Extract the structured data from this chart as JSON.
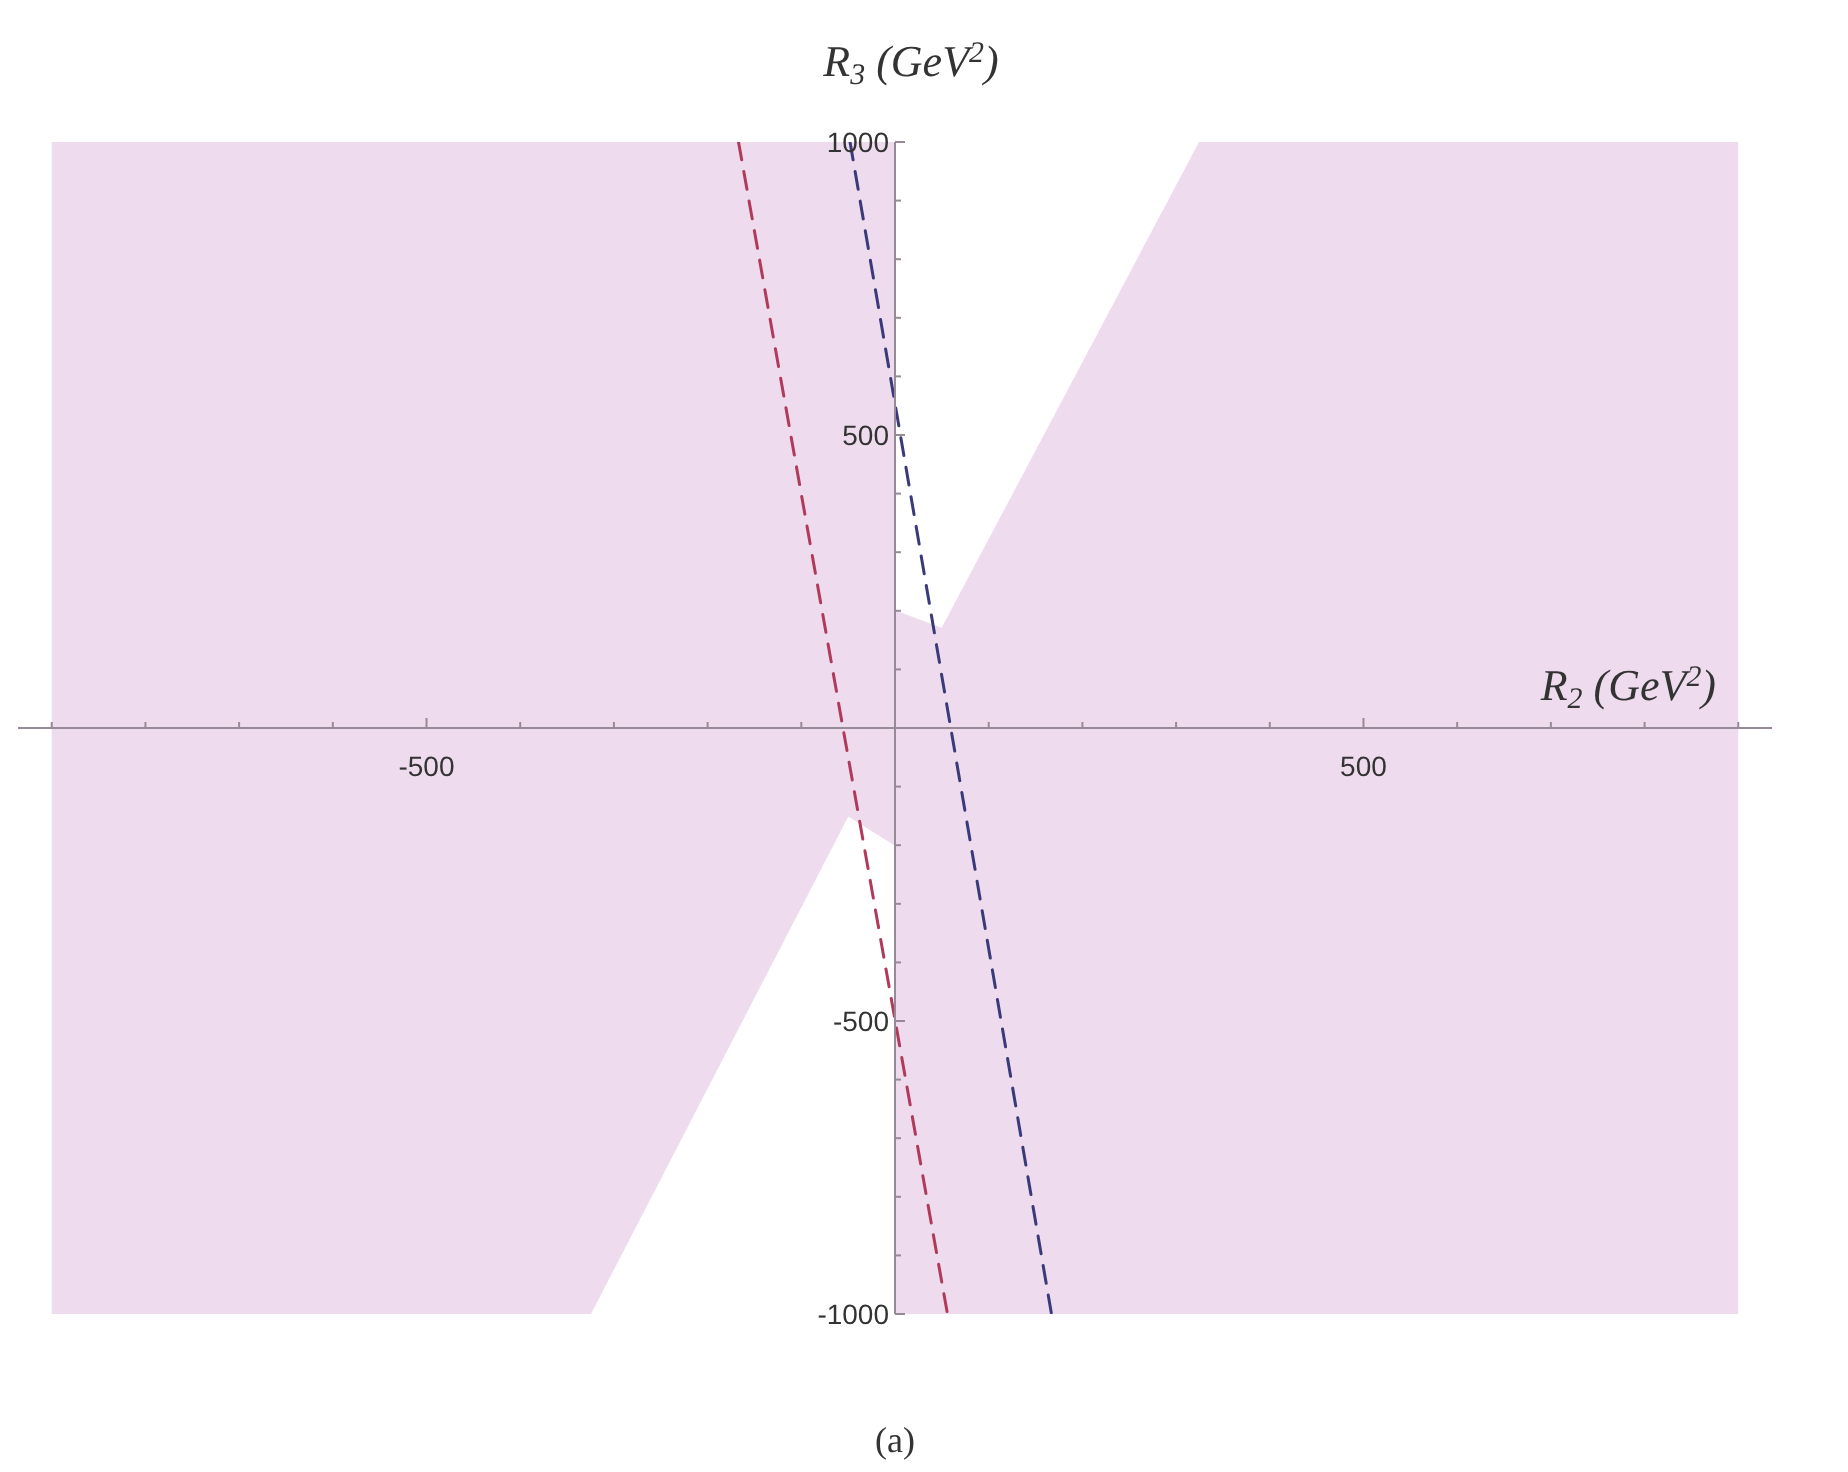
{
  "chart_data": {
    "type": "area",
    "xlabel": "R$_{2}$ (GeV$^{2}$)",
    "ylabel": "R$_{3}$ (GeV$^{2}$)",
    "annotations": [
      "(a)"
    ],
    "xlim": [
      -936,
      936
    ],
    "ylim": [
      -1000,
      1000
    ],
    "xticks": [
      {
        "value": -900,
        "label": null
      },
      {
        "value": -800,
        "label": null
      },
      {
        "value": -700,
        "label": null
      },
      {
        "value": -600,
        "label": null
      },
      -500,
      {
        "value": -400,
        "label": null
      },
      {
        "value": -300,
        "label": null
      },
      {
        "value": -200,
        "label": null
      },
      {
        "value": -100,
        "label": null
      },
      {
        "value": 100,
        "label": null
      },
      {
        "value": 200,
        "label": null
      },
      {
        "value": 300,
        "label": null
      },
      {
        "value": 400,
        "label": null
      },
      500,
      {
        "value": 600,
        "label": null
      },
      {
        "value": 700,
        "label": null
      },
      {
        "value": 800,
        "label": null
      },
      {
        "value": 900,
        "label": null
      }
    ],
    "yticks": [
      -1000,
      {
        "value": -900,
        "label": null
      },
      {
        "value": -800,
        "label": null
      },
      {
        "value": -700,
        "label": null
      },
      {
        "value": -600,
        "label": null
      },
      -500,
      {
        "value": -400,
        "label": null
      },
      {
        "value": -300,
        "label": null
      },
      {
        "value": -200,
        "label": null
      },
      {
        "value": -100,
        "label": null
      },
      {
        "value": 100,
        "label": null
      },
      {
        "value": 200,
        "label": null
      },
      {
        "value": 300,
        "label": null
      },
      {
        "value": 400,
        "label": null
      },
      500,
      {
        "value": 600,
        "label": null
      },
      {
        "value": 700,
        "label": null
      },
      {
        "value": 800,
        "label": null
      },
      {
        "value": 900,
        "label": null
      },
      1000
    ],
    "marker": "none",
    "series": [
      {
        "color": "#eedcee",
        "x": [
          -900,
          0,
          0,
          50,
          325,
          900
        ],
        "values": [
          1000,
          1000,
          200,
          170,
          1000,
          1000
        ]
      },
      {
        "color": "#eedcee",
        "x": [
          -900,
          -325,
          -50,
          0,
          0,
          900
        ],
        "values": [
          -1000,
          -1000,
          -150,
          -200,
          -1000,
          -1000
        ]
      },
      {
        "type": "line",
        "color": "#b03a5a",
        "line_style": "dashed",
        "x": [
          -167,
          56
        ],
        "values": [
          1000,
          -1000
        ]
      },
      {
        "type": "line",
        "color": "#3a3a7a",
        "line_style": "dashed",
        "x": [
          -48,
          167
        ],
        "values": [
          1000,
          -1000
        ]
      }
    ]
  }
}
